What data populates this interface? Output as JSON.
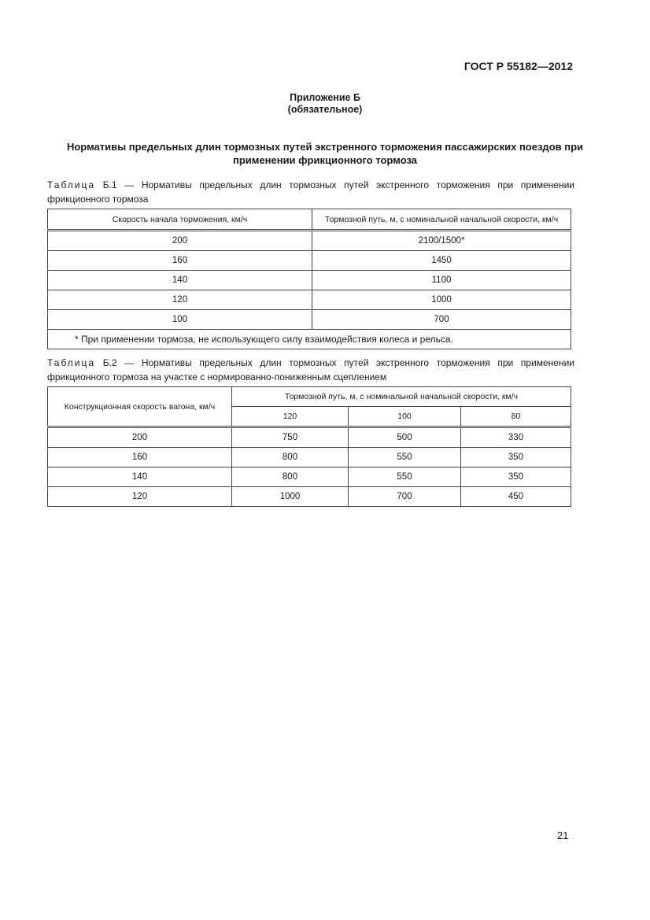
{
  "header": {
    "doc_id": "ГОСТ Р 55182—2012"
  },
  "annex": {
    "title": "Приложение Б",
    "status": "(обязательное)"
  },
  "heading": "Нормативы предельных длин тормозных путей экстренного торможения пассажирских поездов при применении фрикционного тормоза",
  "table1": {
    "label": "Таблица",
    "caption": "Б.1 — Нормативы предельных длин тормозных путей экстренного торможения при применении фрикционного тормоза",
    "headers": [
      "Скорость начала торможения, км/ч",
      "Тормозной путь, м, с номинальной начальной скорости, км/ч"
    ],
    "rows": [
      [
        "200",
        "2100/1500*"
      ],
      [
        "160",
        "1450"
      ],
      [
        "140",
        "1100"
      ],
      [
        "120",
        "1000"
      ],
      [
        "100",
        "700"
      ]
    ],
    "footnote": "* При применении тормоза, не использующего силу взаимодействия колеса и рельса."
  },
  "table2": {
    "label": "Таблица",
    "caption": "Б.2 — Нормативы предельных длин тормозных путей экстренного торможения при применении фрикционного тормоза на участке с нормированно-пониженным сцеплением",
    "header_left": "Конструкционная скорость вагона, км/ч",
    "header_group": "Тормозной путь, м, с номинальной начальной скорости, км/ч",
    "subheaders": [
      "120",
      "100",
      "80"
    ],
    "rows": [
      [
        "200",
        "750",
        "500",
        "330"
      ],
      [
        "160",
        "800",
        "550",
        "350"
      ],
      [
        "140",
        "800",
        "550",
        "350"
      ],
      [
        "120",
        "1000",
        "700",
        "450"
      ]
    ]
  },
  "page_number": "21"
}
